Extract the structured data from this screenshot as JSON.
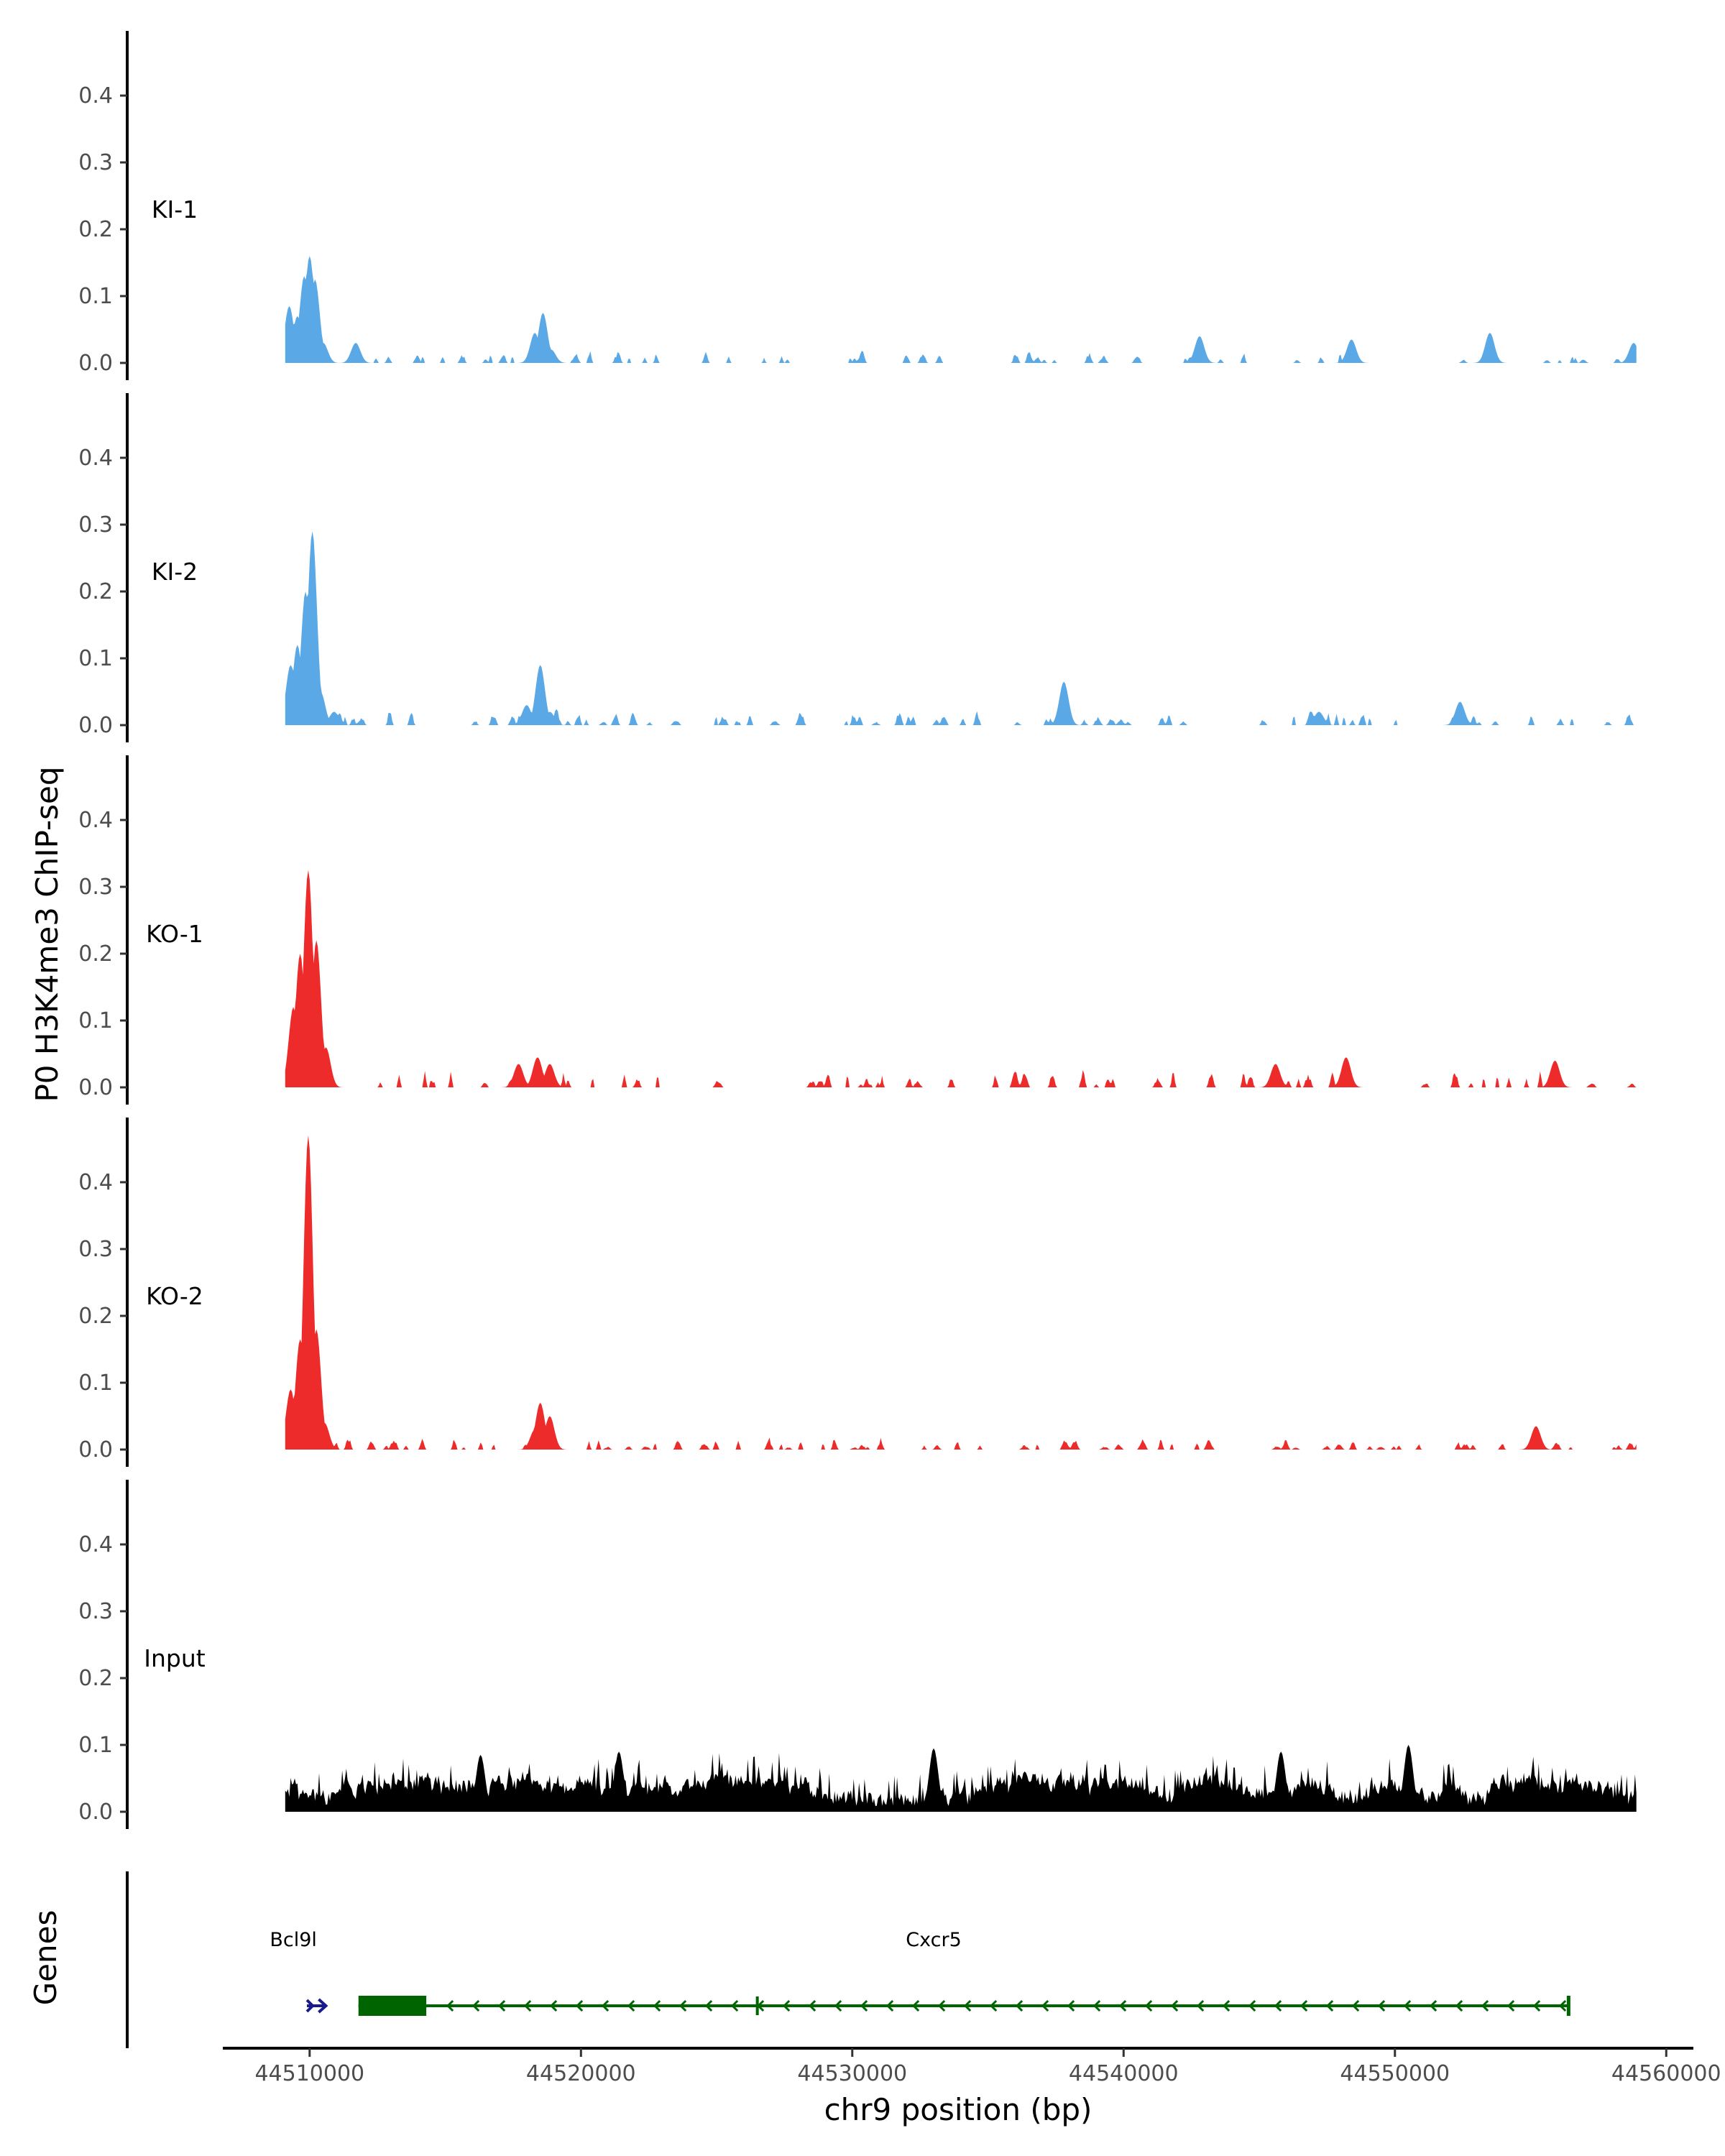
{
  "chart_data": {
    "type": "area",
    "title": "",
    "ylabel": "P0 H3K4me3 ChIP-seq",
    "xlabel": "chr9 position (bp)",
    "ylim": [
      0,
      0.48
    ],
    "y_ticks": [
      "0.0",
      "0.1",
      "0.2",
      "0.3",
      "0.4"
    ],
    "y_tick_values": [
      0,
      0.1,
      0.2,
      0.3,
      0.4
    ],
    "xlim": [
      44506800,
      44561000
    ],
    "x_ticks": [
      "44510000",
      "44520000",
      "44530000",
      "44540000",
      "44550000",
      "44560000"
    ],
    "x_tick_values": [
      44510000,
      44520000,
      44530000,
      44540000,
      44550000,
      44560000
    ],
    "data_range": [
      44509100,
      44558900
    ],
    "tracks": [
      {
        "name": "KI-1",
        "color": "#5aa9e6",
        "noise_amp": 0.012,
        "density": 0.42,
        "seed": 11,
        "peaks": [
          [
            44509250,
            0.085
          ],
          [
            44509550,
            0.07
          ],
          [
            44509800,
            0.13
          ],
          [
            44510000,
            0.16
          ],
          [
            44510200,
            0.125
          ],
          [
            44510500,
            0.03
          ],
          [
            44511700,
            0.03
          ],
          [
            44518300,
            0.045
          ],
          [
            44518600,
            0.075
          ],
          [
            44518900,
            0.02
          ],
          [
            44542800,
            0.04
          ],
          [
            44548400,
            0.035
          ],
          [
            44553500,
            0.045
          ],
          [
            44558800,
            0.03
          ]
        ]
      },
      {
        "name": "KI-2",
        "color": "#5aa9e6",
        "noise_amp": 0.015,
        "density": 0.45,
        "seed": 23,
        "peaks": [
          [
            44509300,
            0.09
          ],
          [
            44509550,
            0.12
          ],
          [
            44509850,
            0.2
          ],
          [
            44510100,
            0.29
          ],
          [
            44510400,
            0.05
          ],
          [
            44510900,
            0.02
          ],
          [
            44518000,
            0.03
          ],
          [
            44518500,
            0.09
          ],
          [
            44518850,
            0.02
          ],
          [
            44537800,
            0.065
          ],
          [
            44552400,
            0.035
          ],
          [
            44547200,
            0.02
          ]
        ]
      },
      {
        "name": "KO-1",
        "color": "#ee2b2b",
        "noise_amp": 0.018,
        "density": 0.4,
        "seed": 37,
        "peaks": [
          [
            44509400,
            0.12
          ],
          [
            44509650,
            0.2
          ],
          [
            44509950,
            0.325
          ],
          [
            44510250,
            0.22
          ],
          [
            44510600,
            0.06
          ],
          [
            44517700,
            0.035
          ],
          [
            44518400,
            0.045
          ],
          [
            44518850,
            0.035
          ],
          [
            44548200,
            0.045
          ],
          [
            44555900,
            0.04
          ],
          [
            44545600,
            0.035
          ]
        ]
      },
      {
        "name": "KO-2",
        "color": "#ee2b2b",
        "noise_amp": 0.012,
        "density": 0.5,
        "seed": 53,
        "peaks": [
          [
            44509300,
            0.09
          ],
          [
            44509650,
            0.165
          ],
          [
            44509950,
            0.47
          ],
          [
            44510250,
            0.18
          ],
          [
            44510550,
            0.04
          ],
          [
            44518300,
            0.03
          ],
          [
            44518500,
            0.07
          ],
          [
            44518850,
            0.05
          ],
          [
            44555200,
            0.035
          ]
        ]
      },
      {
        "name": "Input",
        "color": "#000000",
        "noise_amp": 0.045,
        "density": 1.0,
        "seed": 71,
        "peaks": [
          [
            44533000,
            0.095
          ],
          [
            44550500,
            0.1
          ],
          [
            44545800,
            0.09
          ],
          [
            44516300,
            0.085
          ],
          [
            44521400,
            0.09
          ]
        ]
      }
    ],
    "genes_label": "Genes",
    "genes": [
      {
        "name": "Bcl9l",
        "strand": "+",
        "color": "#1a1a8c",
        "start": 44509900,
        "end": 44510600,
        "thick_start": null,
        "thick_end": null,
        "label_pos": 44509400,
        "extra_tick": null
      },
      {
        "name": "Cxcr5",
        "strand": "-",
        "color": "#006400",
        "start": 44511800,
        "end": 44556400,
        "thick_start": 44511800,
        "thick_end": 44514300,
        "label_pos": 44533000,
        "extra_tick": 44526500
      }
    ]
  }
}
